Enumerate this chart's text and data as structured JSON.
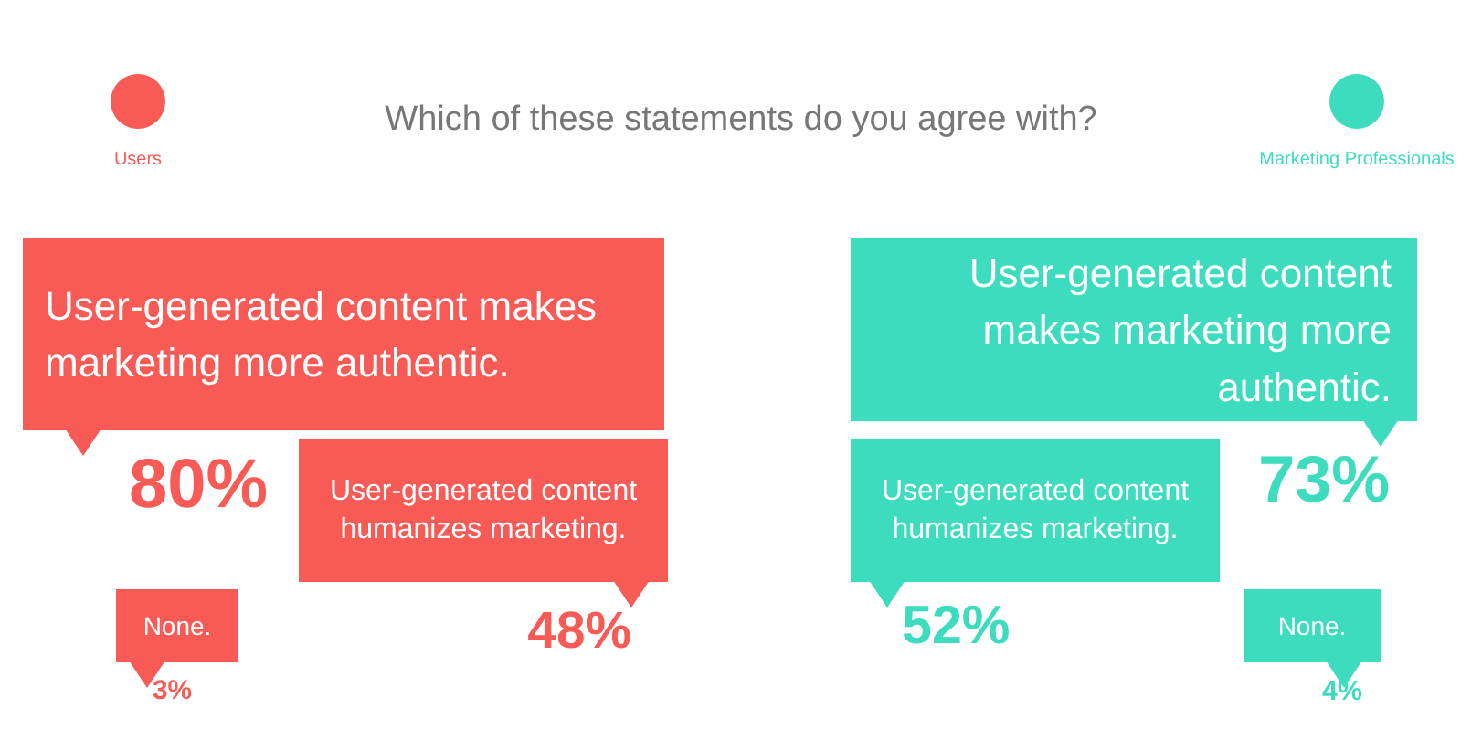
{
  "chart_data": [
    {
      "type": "other",
      "title": "Which of these statements do you agree with?",
      "categories": [
        "User-generated content makes marketing more authentic.",
        "User-generated content humanizes marketing.",
        "None."
      ],
      "series": [
        {
          "name": "Users",
          "color": "#f85a55",
          "values": [
            80,
            48,
            3
          ],
          "value_labels": [
            "80%",
            "48%",
            "3%"
          ]
        }
      ]
    },
    {
      "type": "other",
      "categories": [
        "User-generated content makes marketing more authentic.",
        "User-generated content humanizes marketing.",
        "None."
      ],
      "series": [
        {
          "name": "Marketing Professionals",
          "color": "#3ddcbe",
          "values": [
            73,
            52,
            4
          ],
          "value_labels": [
            "73%",
            "52%",
            "4%"
          ]
        }
      ]
    }
  ]
}
